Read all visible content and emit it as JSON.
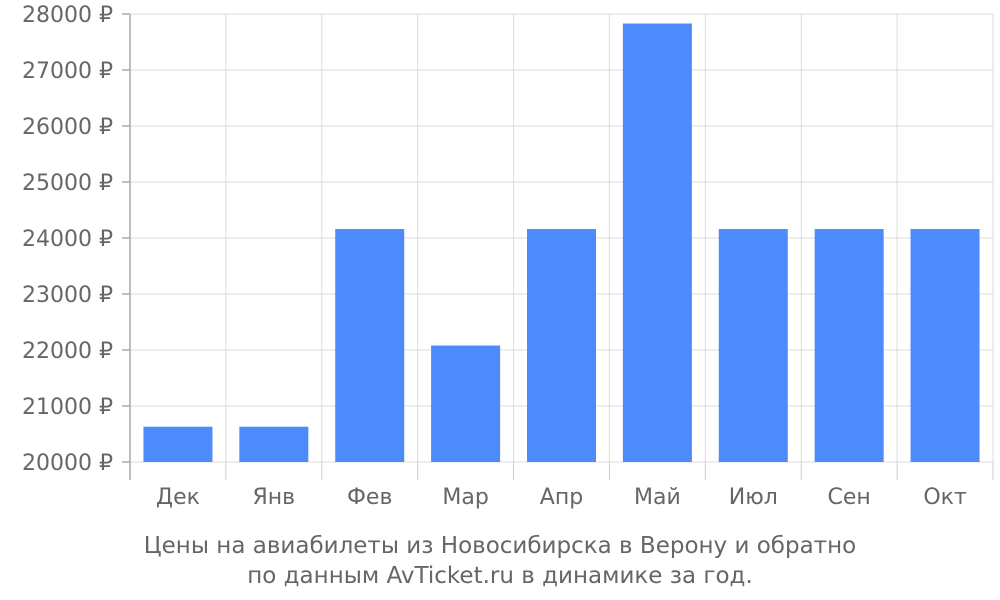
{
  "chart_data": {
    "type": "bar",
    "categories": [
      "Дек",
      "Янв",
      "Фев",
      "Мар",
      "Апр",
      "Май",
      "Июл",
      "Сен",
      "Окт"
    ],
    "values": [
      20630,
      20630,
      24160,
      22080,
      24160,
      27830,
      24160,
      24160,
      24160
    ],
    "ylim": [
      20000,
      28000
    ],
    "yticks": [
      20000,
      21000,
      22000,
      23000,
      24000,
      25000,
      26000,
      27000,
      28000
    ],
    "ytick_labels": [
      "20000 ₽",
      "21000 ₽",
      "22000 ₽",
      "23000 ₽",
      "24000 ₽",
      "25000 ₽",
      "26000 ₽",
      "27000 ₽",
      "28000 ₽"
    ],
    "grid": true,
    "bar_color": "#4d8afc",
    "caption_line1": "Цены на авиабилеты из Новосибирска в Верону и обратно",
    "caption_line2": "по данным AvTicket.ru в динамике за год."
  }
}
